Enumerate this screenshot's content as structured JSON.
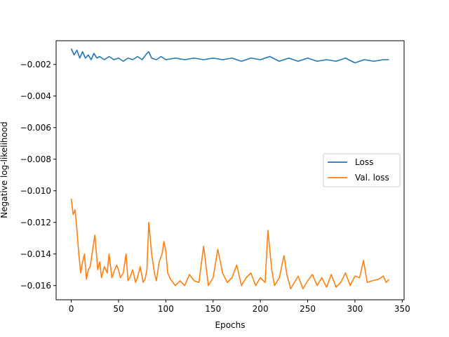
{
  "chart_data": {
    "type": "line",
    "title": "",
    "xlabel": "Epochs",
    "ylabel": "Negative log-likelihood",
    "xlim": [
      -16,
      352
    ],
    "ylim": [
      -0.0169,
      -0.0005
    ],
    "xticks": [
      0,
      50,
      100,
      150,
      200,
      250,
      300,
      350
    ],
    "xtick_labels": [
      "0",
      "50",
      "100",
      "150",
      "200",
      "250",
      "300",
      "350"
    ],
    "yticks": [
      -0.016,
      -0.014,
      -0.012,
      -0.01,
      -0.008,
      -0.006,
      -0.004,
      -0.002
    ],
    "ytick_labels": [
      "−0.016",
      "−0.014",
      "−0.012",
      "−0.010",
      "−0.008",
      "−0.006",
      "−0.004",
      "−0.002"
    ],
    "grid": false,
    "legend_position": "center-right",
    "series": [
      {
        "name": "Loss",
        "color": "#1f77b4",
        "x": [
          0,
          3,
          6,
          9,
          12,
          15,
          18,
          21,
          24,
          27,
          30,
          35,
          40,
          45,
          50,
          55,
          60,
          65,
          70,
          75,
          80,
          82,
          85,
          90,
          95,
          100,
          110,
          120,
          130,
          140,
          150,
          160,
          170,
          180,
          190,
          200,
          210,
          220,
          230,
          240,
          250,
          260,
          270,
          280,
          290,
          300,
          310,
          320,
          330,
          336
        ],
        "y": [
          -0.001,
          -0.0014,
          -0.0011,
          -0.0016,
          -0.0012,
          -0.0016,
          -0.0014,
          -0.0017,
          -0.0013,
          -0.0016,
          -0.0015,
          -0.0017,
          -0.0015,
          -0.0017,
          -0.0016,
          -0.0018,
          -0.0016,
          -0.0017,
          -0.0015,
          -0.0017,
          -0.0013,
          -0.0012,
          -0.0016,
          -0.0017,
          -0.0015,
          -0.0017,
          -0.0016,
          -0.0017,
          -0.0016,
          -0.0017,
          -0.0016,
          -0.0017,
          -0.0016,
          -0.0018,
          -0.0016,
          -0.0017,
          -0.0015,
          -0.0018,
          -0.0016,
          -0.0018,
          -0.0016,
          -0.0018,
          -0.0017,
          -0.0018,
          -0.0016,
          -0.0019,
          -0.0017,
          -0.0018,
          -0.0017,
          -0.0017
        ]
      },
      {
        "name": "Val. loss",
        "color": "#ff7f0e",
        "x": [
          0,
          2,
          4,
          6,
          8,
          10,
          12,
          14,
          16,
          18,
          20,
          22,
          25,
          28,
          30,
          32,
          35,
          38,
          40,
          43,
          46,
          48,
          50,
          52,
          55,
          58,
          60,
          62,
          65,
          68,
          70,
          73,
          76,
          78,
          80,
          82,
          85,
          88,
          90,
          93,
          96,
          98,
          100,
          102,
          105,
          110,
          115,
          120,
          125,
          130,
          135,
          140,
          145,
          150,
          155,
          160,
          165,
          170,
          175,
          180,
          185,
          190,
          195,
          200,
          205,
          208,
          212,
          215,
          220,
          225,
          228,
          232,
          236,
          240,
          245,
          250,
          255,
          260,
          265,
          270,
          275,
          280,
          285,
          290,
          295,
          300,
          305,
          309,
          313,
          318,
          325,
          330,
          333,
          336
        ],
        "y": [
          -0.0105,
          -0.0115,
          -0.0112,
          -0.0125,
          -0.014,
          -0.0152,
          -0.0145,
          -0.014,
          -0.0156,
          -0.015,
          -0.0148,
          -0.014,
          -0.0128,
          -0.015,
          -0.0145,
          -0.0155,
          -0.0148,
          -0.0152,
          -0.014,
          -0.0155,
          -0.015,
          -0.0147,
          -0.015,
          -0.0155,
          -0.0152,
          -0.014,
          -0.0157,
          -0.0155,
          -0.015,
          -0.0158,
          -0.0155,
          -0.0148,
          -0.0158,
          -0.0156,
          -0.015,
          -0.012,
          -0.014,
          -0.0152,
          -0.0157,
          -0.0145,
          -0.014,
          -0.0132,
          -0.0138,
          -0.0152,
          -0.0156,
          -0.016,
          -0.0157,
          -0.016,
          -0.0153,
          -0.0157,
          -0.0158,
          -0.0135,
          -0.016,
          -0.0155,
          -0.0137,
          -0.0152,
          -0.0158,
          -0.0155,
          -0.0147,
          -0.016,
          -0.0155,
          -0.0152,
          -0.016,
          -0.0155,
          -0.0158,
          -0.0125,
          -0.015,
          -0.016,
          -0.0155,
          -0.0141,
          -0.0153,
          -0.0162,
          -0.0158,
          -0.0154,
          -0.0162,
          -0.0157,
          -0.0153,
          -0.016,
          -0.0155,
          -0.0161,
          -0.0153,
          -0.0161,
          -0.0158,
          -0.0152,
          -0.016,
          -0.0154,
          -0.0155,
          -0.0144,
          -0.0158,
          -0.0157,
          -0.0156,
          -0.0154,
          -0.0158,
          -0.0156
        ]
      }
    ]
  }
}
